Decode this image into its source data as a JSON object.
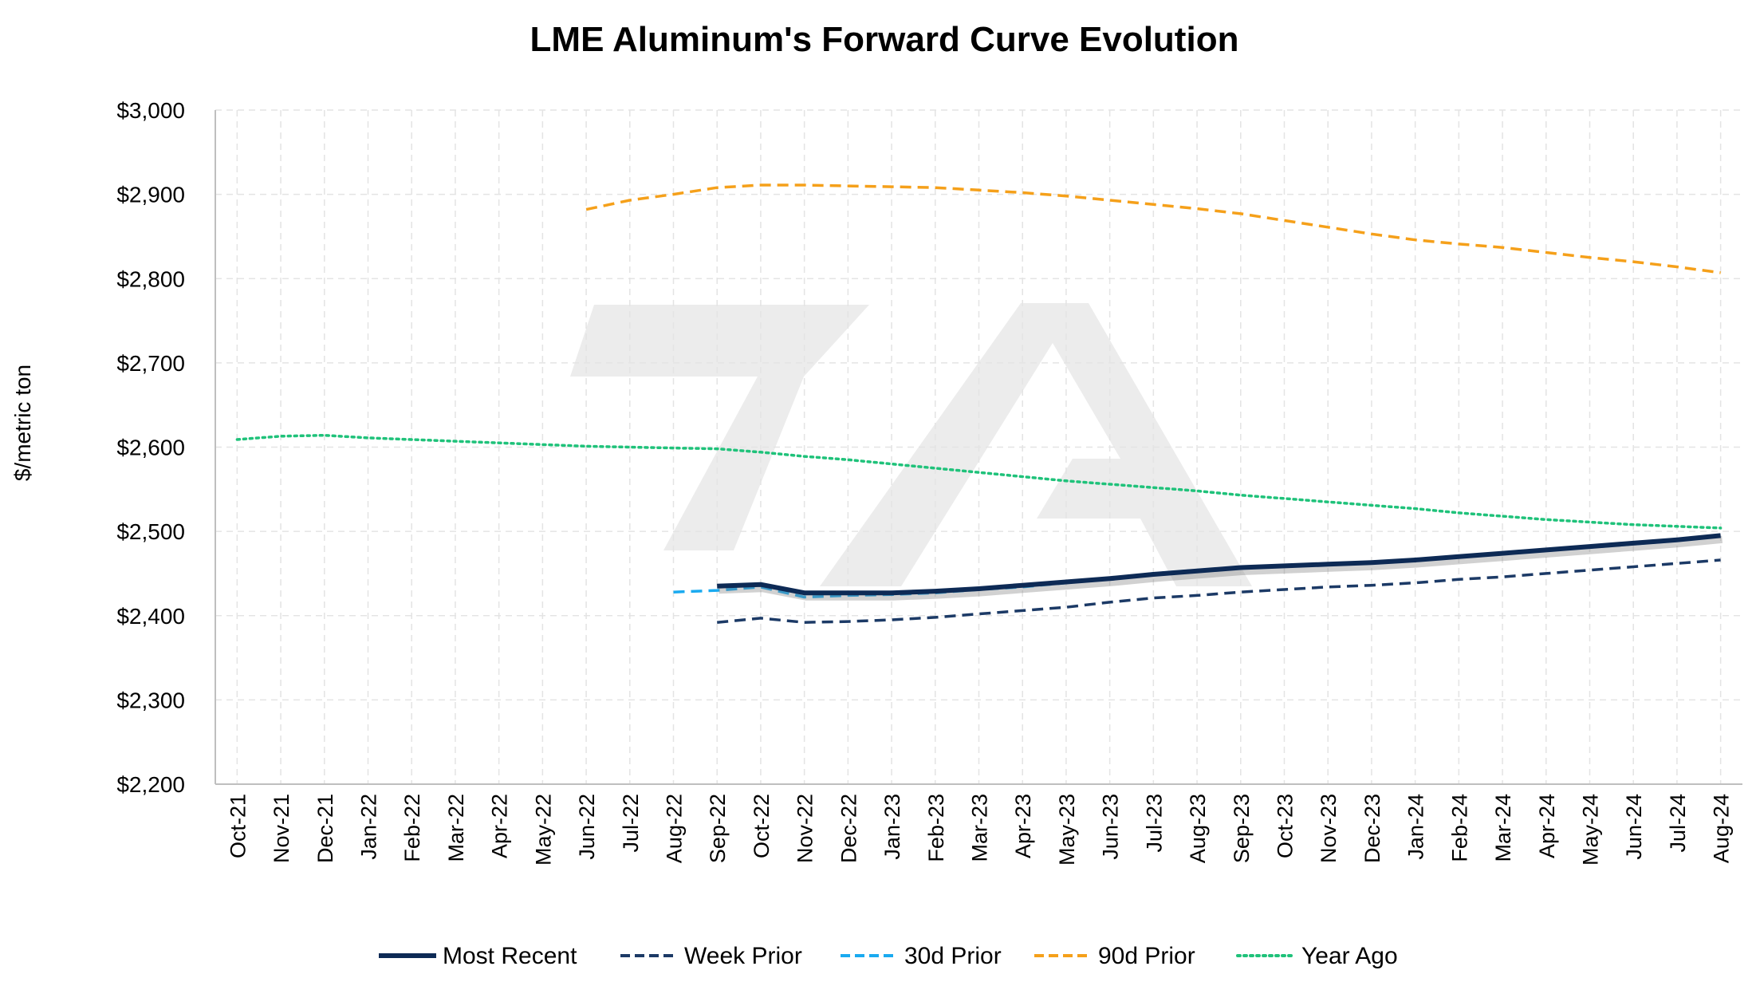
{
  "chart_data": {
    "type": "line",
    "title": "LME Aluminum's Forward Curve Evolution",
    "xlabel": "",
    "ylabel": "$/metric ton",
    "ylim": [
      2200,
      3000
    ],
    "y_ticks": [
      "$2,200",
      "$2,300",
      "$2,400",
      "$2,500",
      "$2,600",
      "$2,700",
      "$2,800",
      "$2,900",
      "$3,000"
    ],
    "grid": true,
    "legend_position": "bottom",
    "categories": [
      "Oct-21",
      "Nov-21",
      "Dec-21",
      "Jan-22",
      "Feb-22",
      "Mar-22",
      "Apr-22",
      "May-22",
      "Jun-22",
      "Jul-22",
      "Aug-22",
      "Sep-22",
      "Oct-22",
      "Nov-22",
      "Dec-22",
      "Jan-23",
      "Feb-23",
      "Mar-23",
      "Apr-23",
      "May-23",
      "Jun-23",
      "Jul-23",
      "Aug-23",
      "Sep-23",
      "Oct-23",
      "Nov-23",
      "Dec-23",
      "Jan-24",
      "Feb-24",
      "Mar-24",
      "Apr-24",
      "May-24",
      "Jun-24",
      "Jul-24",
      "Aug-24"
    ],
    "series": [
      {
        "name": "Year Ago",
        "color": "#1fc27a",
        "dash": "dotted",
        "values": [
          2609,
          2613,
          2614,
          2611,
          2609,
          2607,
          2605,
          2603,
          2601,
          2600,
          2599,
          2598,
          2594,
          2589,
          2585,
          2580,
          2575,
          2570,
          2565,
          2560,
          2556,
          2552,
          2548,
          2543,
          2539,
          2535,
          2531,
          2527,
          2522,
          2518,
          2514,
          2511,
          2508,
          2506,
          2504
        ]
      },
      {
        "name": "90d Prior",
        "color": "#f5a01a",
        "dash": "dashed",
        "values": [
          null,
          null,
          null,
          null,
          null,
          null,
          null,
          null,
          2882,
          2893,
          2900,
          2908,
          2911,
          2911,
          2910,
          2909,
          2908,
          2905,
          2902,
          2898,
          2893,
          2888,
          2883,
          2877,
          2869,
          2861,
          2853,
          2846,
          2841,
          2837,
          2831,
          2825,
          2820,
          2814,
          2807
        ]
      },
      {
        "name": "Week Prior",
        "color": "#1c3a66",
        "dash": "dashed",
        "values": [
          null,
          null,
          null,
          null,
          null,
          null,
          null,
          null,
          null,
          null,
          null,
          2392,
          2397,
          2392,
          2393,
          2395,
          2398,
          2402,
          2406,
          2410,
          2416,
          2421,
          2424,
          2428,
          2431,
          2434,
          2436,
          2439,
          2443,
          2446,
          2450,
          2454,
          2458,
          2462,
          2466
        ]
      },
      {
        "name": "30d Prior",
        "color": "#1aaaf0",
        "dash": "dashed",
        "values": [
          null,
          null,
          null,
          null,
          null,
          null,
          null,
          null,
          null,
          null,
          2428,
          2430,
          2434,
          2422,
          2424,
          2425,
          2427,
          2431,
          2434,
          2439,
          2444,
          2450,
          2454,
          2457,
          2459,
          2461,
          2463,
          2466,
          2470,
          2474,
          2478,
          2481,
          2485,
          2489,
          2495
        ]
      },
      {
        "name": "Most Recent",
        "color": "#0d2a55",
        "dash": "solid",
        "values": [
          null,
          null,
          null,
          null,
          null,
          null,
          null,
          null,
          null,
          null,
          null,
          2435,
          2437,
          2427,
          2427,
          2427,
          2429,
          2432,
          2436,
          2440,
          2444,
          2449,
          2453,
          2457,
          2459,
          2461,
          2463,
          2466,
          2470,
          2474,
          2478,
          2482,
          2486,
          2490,
          2495
        ]
      }
    ],
    "legend": [
      "Most Recent",
      "Week Prior",
      "30d Prior",
      "90d Prior",
      "Year Ago"
    ]
  }
}
